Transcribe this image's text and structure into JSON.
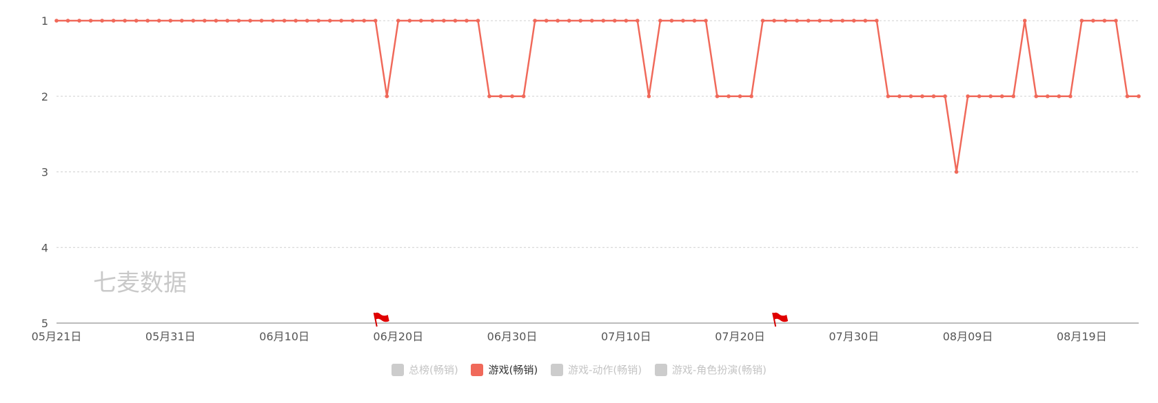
{
  "chart_data": {
    "type": "line",
    "watermark": "七麦数据",
    "y_axis": {
      "min": 1,
      "max": 5,
      "inverted": true,
      "ticks": [
        "1",
        "2",
        "3",
        "4",
        "5"
      ]
    },
    "x_tick_labels": [
      "05月21日",
      "05月31日",
      "06月10日",
      "06月20日",
      "06月30日",
      "07月10日",
      "07月20日",
      "07月30日",
      "08月09日",
      "08月19日"
    ],
    "x_dates": [
      "05-21",
      "05-22",
      "05-23",
      "05-24",
      "05-25",
      "05-26",
      "05-27",
      "05-28",
      "05-29",
      "05-30",
      "05-31",
      "06-01",
      "06-02",
      "06-03",
      "06-04",
      "06-05",
      "06-06",
      "06-07",
      "06-08",
      "06-09",
      "06-10",
      "06-11",
      "06-12",
      "06-13",
      "06-14",
      "06-15",
      "06-16",
      "06-17",
      "06-18",
      "06-19",
      "06-20",
      "06-21",
      "06-22",
      "06-23",
      "06-24",
      "06-25",
      "06-26",
      "06-27",
      "06-28",
      "06-29",
      "06-30",
      "07-01",
      "07-02",
      "07-03",
      "07-04",
      "07-05",
      "07-06",
      "07-07",
      "07-08",
      "07-09",
      "07-10",
      "07-11",
      "07-12",
      "07-13",
      "07-14",
      "07-15",
      "07-16",
      "07-17",
      "07-18",
      "07-19",
      "07-20",
      "07-21",
      "07-22",
      "07-23",
      "07-24",
      "07-25",
      "07-26",
      "07-27",
      "07-28",
      "07-29",
      "07-30",
      "07-31",
      "08-01",
      "08-02",
      "08-03",
      "08-04",
      "08-05",
      "08-06",
      "08-07",
      "08-08",
      "08-09",
      "08-10",
      "08-11",
      "08-12",
      "08-13",
      "08-14",
      "08-15",
      "08-16",
      "08-17",
      "08-18",
      "08-19",
      "08-20",
      "08-21",
      "08-22",
      "08-23",
      "08-24"
    ],
    "series": [
      {
        "name": "游戏(畅销)",
        "color": "#f0695a",
        "values": [
          1,
          1,
          1,
          1,
          1,
          1,
          1,
          1,
          1,
          1,
          1,
          1,
          1,
          1,
          1,
          1,
          1,
          1,
          1,
          1,
          1,
          1,
          1,
          1,
          1,
          1,
          1,
          1,
          1,
          2,
          1,
          1,
          1,
          1,
          1,
          1,
          1,
          1,
          2,
          2,
          2,
          2,
          1,
          1,
          1,
          1,
          1,
          1,
          1,
          1,
          1,
          1,
          2,
          1,
          1,
          1,
          1,
          1,
          2,
          2,
          2,
          2,
          1,
          1,
          1,
          1,
          1,
          1,
          1,
          1,
          1,
          1,
          1,
          2,
          2,
          2,
          2,
          2,
          2,
          3,
          2,
          2,
          2,
          2,
          2,
          1,
          2,
          2,
          2,
          2,
          1,
          1,
          1,
          1,
          2,
          2
        ]
      }
    ],
    "flags": [
      {
        "date": "06-18"
      },
      {
        "date": "07-23"
      }
    ],
    "legend": [
      {
        "label": "总榜(畅销)",
        "active": false
      },
      {
        "label": "游戏(畅销)",
        "active": true
      },
      {
        "label": "游戏-动作(畅销)",
        "active": false
      },
      {
        "label": "游戏-角色扮演(畅销)",
        "active": false
      }
    ]
  }
}
